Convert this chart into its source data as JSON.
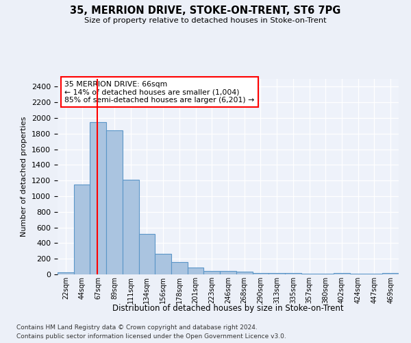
{
  "title1": "35, MERRION DRIVE, STOKE-ON-TRENT, ST6 7PG",
  "title2": "Size of property relative to detached houses in Stoke-on-Trent",
  "xlabel": "Distribution of detached houses by size in Stoke-on-Trent",
  "ylabel": "Number of detached properties",
  "bin_labels": [
    "22sqm",
    "44sqm",
    "67sqm",
    "89sqm",
    "111sqm",
    "134sqm",
    "156sqm",
    "178sqm",
    "201sqm",
    "223sqm",
    "246sqm",
    "268sqm",
    "290sqm",
    "313sqm",
    "335sqm",
    "357sqm",
    "380sqm",
    "402sqm",
    "424sqm",
    "447sqm",
    "469sqm"
  ],
  "bar_heights": [
    30,
    1150,
    1950,
    1840,
    1210,
    520,
    265,
    155,
    85,
    45,
    40,
    35,
    20,
    20,
    15,
    10,
    5,
    15,
    5,
    5,
    20
  ],
  "bar_color": "#aac4e0",
  "bar_edge_color": "#5b96c8",
  "red_line_x": 1.95,
  "annotation_text": "35 MERRION DRIVE: 66sqm\n← 14% of detached houses are smaller (1,004)\n85% of semi-detached houses are larger (6,201) →",
  "annotation_box_color": "white",
  "annotation_box_edge_color": "red",
  "ylim": [
    0,
    2500
  ],
  "yticks": [
    0,
    200,
    400,
    600,
    800,
    1000,
    1200,
    1400,
    1600,
    1800,
    2000,
    2200,
    2400
  ],
  "footnote1": "Contains HM Land Registry data © Crown copyright and database right 2024.",
  "footnote2": "Contains public sector information licensed under the Open Government Licence v3.0.",
  "bg_color": "#ecf0f8",
  "plot_bg_color": "#eef2fa"
}
